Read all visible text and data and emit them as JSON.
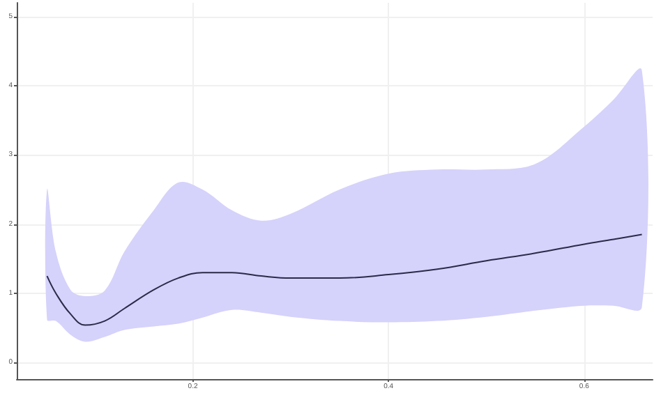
{
  "chart_data": {
    "type": "line",
    "x": [
      0.051,
      0.06,
      0.075,
      0.09,
      0.11,
      0.13,
      0.16,
      0.185,
      0.21,
      0.24,
      0.27,
      0.3,
      0.35,
      0.4,
      0.45,
      0.5,
      0.55,
      0.6,
      0.63,
      0.659
    ],
    "series": [
      {
        "color": "#2b2a48",
        "values": [
          1.25,
          1.0,
          0.7,
          0.54,
          0.6,
          0.78,
          1.05,
          1.22,
          1.3,
          1.3,
          1.25,
          1.22,
          1.22,
          1.27,
          1.35,
          1.47,
          1.58,
          1.71,
          1.78,
          1.85
        ],
        "lower": [
          0.62,
          0.6,
          0.4,
          0.3,
          0.37,
          0.47,
          0.52,
          0.56,
          0.65,
          0.76,
          0.72,
          0.66,
          0.6,
          0.58,
          0.6,
          0.66,
          0.75,
          0.82,
          0.82,
          0.8
        ],
        "upper": [
          2.5,
          1.6,
          1.05,
          0.96,
          1.04,
          1.6,
          2.2,
          2.6,
          2.5,
          2.2,
          2.05,
          2.15,
          2.5,
          2.73,
          2.79,
          2.79,
          2.87,
          3.41,
          3.8,
          4.22
        ]
      }
    ],
    "xlim": [
      0.02,
      0.67
    ],
    "xticks": [
      0.2,
      0.4,
      0.6
    ],
    "ylim": [
      -0.24,
      5.2
    ],
    "yticks": [
      0,
      1,
      2,
      3,
      4,
      5
    ],
    "grid": true,
    "line_style": "solid",
    "marker": "none"
  }
}
